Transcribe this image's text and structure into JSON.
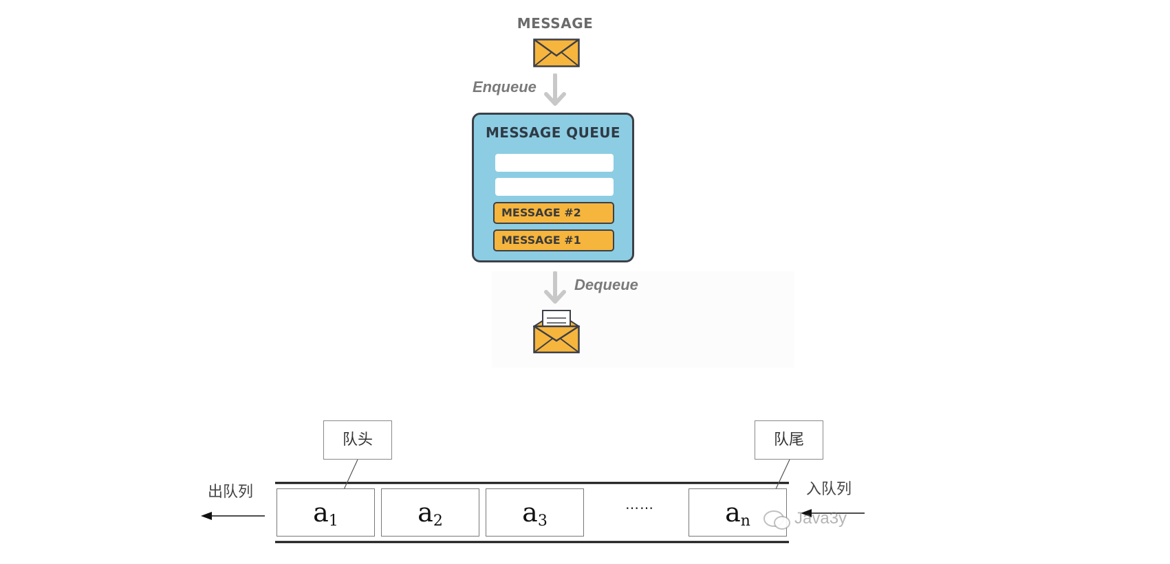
{
  "top_diagram": {
    "message_label": "MESSAGE",
    "enqueue_label": "Enqueue",
    "queue_title": "MESSAGE QUEUE",
    "queue_items": [
      "MESSAGE #2",
      "MESSAGE #1"
    ],
    "dequeue_label": "Dequeue",
    "colors": {
      "envelope": "#f6b53d",
      "queue_fill": "#8ccde3",
      "outline": "#3c3f47",
      "arrow": "#c8c8c8"
    },
    "icons": [
      "closed-envelope-icon",
      "down-arrow-icon",
      "open-envelope-icon"
    ]
  },
  "bottom_diagram": {
    "head_label": "队头",
    "tail_label": "队尾",
    "dequeue_label": "出队列",
    "enqueue_label": "入队列",
    "cells": [
      {
        "base": "a",
        "sub": "1"
      },
      {
        "base": "a",
        "sub": "2"
      },
      {
        "base": "a",
        "sub": "3"
      },
      {
        "base": "a",
        "sub": "n"
      }
    ],
    "ellipsis": "……",
    "watermark": "Java3y",
    "icons": [
      "left-arrow-icon",
      "wechat-icon"
    ]
  }
}
